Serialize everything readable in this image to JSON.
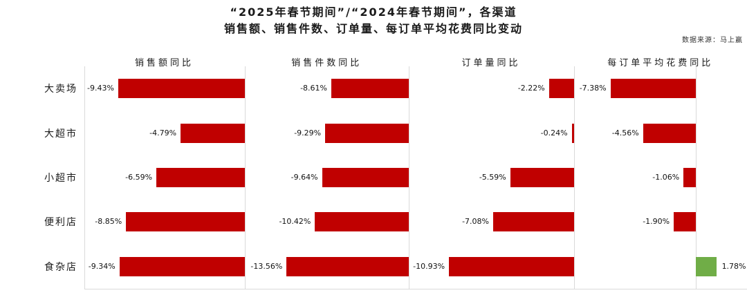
{
  "header": {
    "title_line1": "“2025年春节期间”/“2024年春节期间”，各渠道",
    "title_line2": "销售额、销售件数、订单量、每订单平均花费同比变动",
    "source": "数据来源：马上赢"
  },
  "colors": {
    "negative_bar": "#C00000",
    "positive_bar": "#70AD47",
    "grid_line": "#D9D9D9"
  },
  "chart_data": {
    "type": "bar",
    "orientation": "horizontal",
    "title": "“2025年春节期间”/“2024年春节期间”，各渠道销售额、销售件数、订单量、每订单平均花费同比变动",
    "unit": "%",
    "categories": [
      "大卖场",
      "大超市",
      "小超市",
      "便利店",
      "食杂店"
    ],
    "legend": "none",
    "grid": "panel separators and bottom axis only",
    "bar_color_negative": "#C00000",
    "bar_color_positive": "#70AD47",
    "series": [
      {
        "name": "销售额同比",
        "values": [
          -9.43,
          -4.79,
          -6.59,
          -8.85,
          -9.34
        ],
        "labels": [
          "-9.43%",
          "-4.79%",
          "-6.59%",
          "-8.85%",
          "-9.34%"
        ],
        "xlim": [
          -11.9,
          0
        ]
      },
      {
        "name": "销售件数同比",
        "values": [
          -8.61,
          -9.29,
          -9.64,
          -10.42,
          -13.56
        ],
        "labels": [
          "-8.61%",
          "-9.29%",
          "-9.64%",
          "-10.42%",
          "-13.56%"
        ],
        "xlim": [
          -18.1,
          0
        ]
      },
      {
        "name": "订单量同比",
        "values": [
          -2.22,
          -0.24,
          -5.59,
          -7.08,
          -10.93
        ],
        "labels": [
          "-2.22%",
          "-0.24%",
          "-5.59%",
          "-7.08%",
          "-10.93%"
        ],
        "xlim": [
          -14.4,
          0
        ]
      },
      {
        "name": "每订单平均花费同比",
        "values": [
          -7.38,
          -4.56,
          -1.06,
          -1.9,
          1.78
        ],
        "labels": [
          "-7.38%",
          "-4.56%",
          "-1.06%",
          "-1.90%",
          "1.78%"
        ],
        "xlim": [
          -10.5,
          4.5
        ]
      }
    ]
  }
}
